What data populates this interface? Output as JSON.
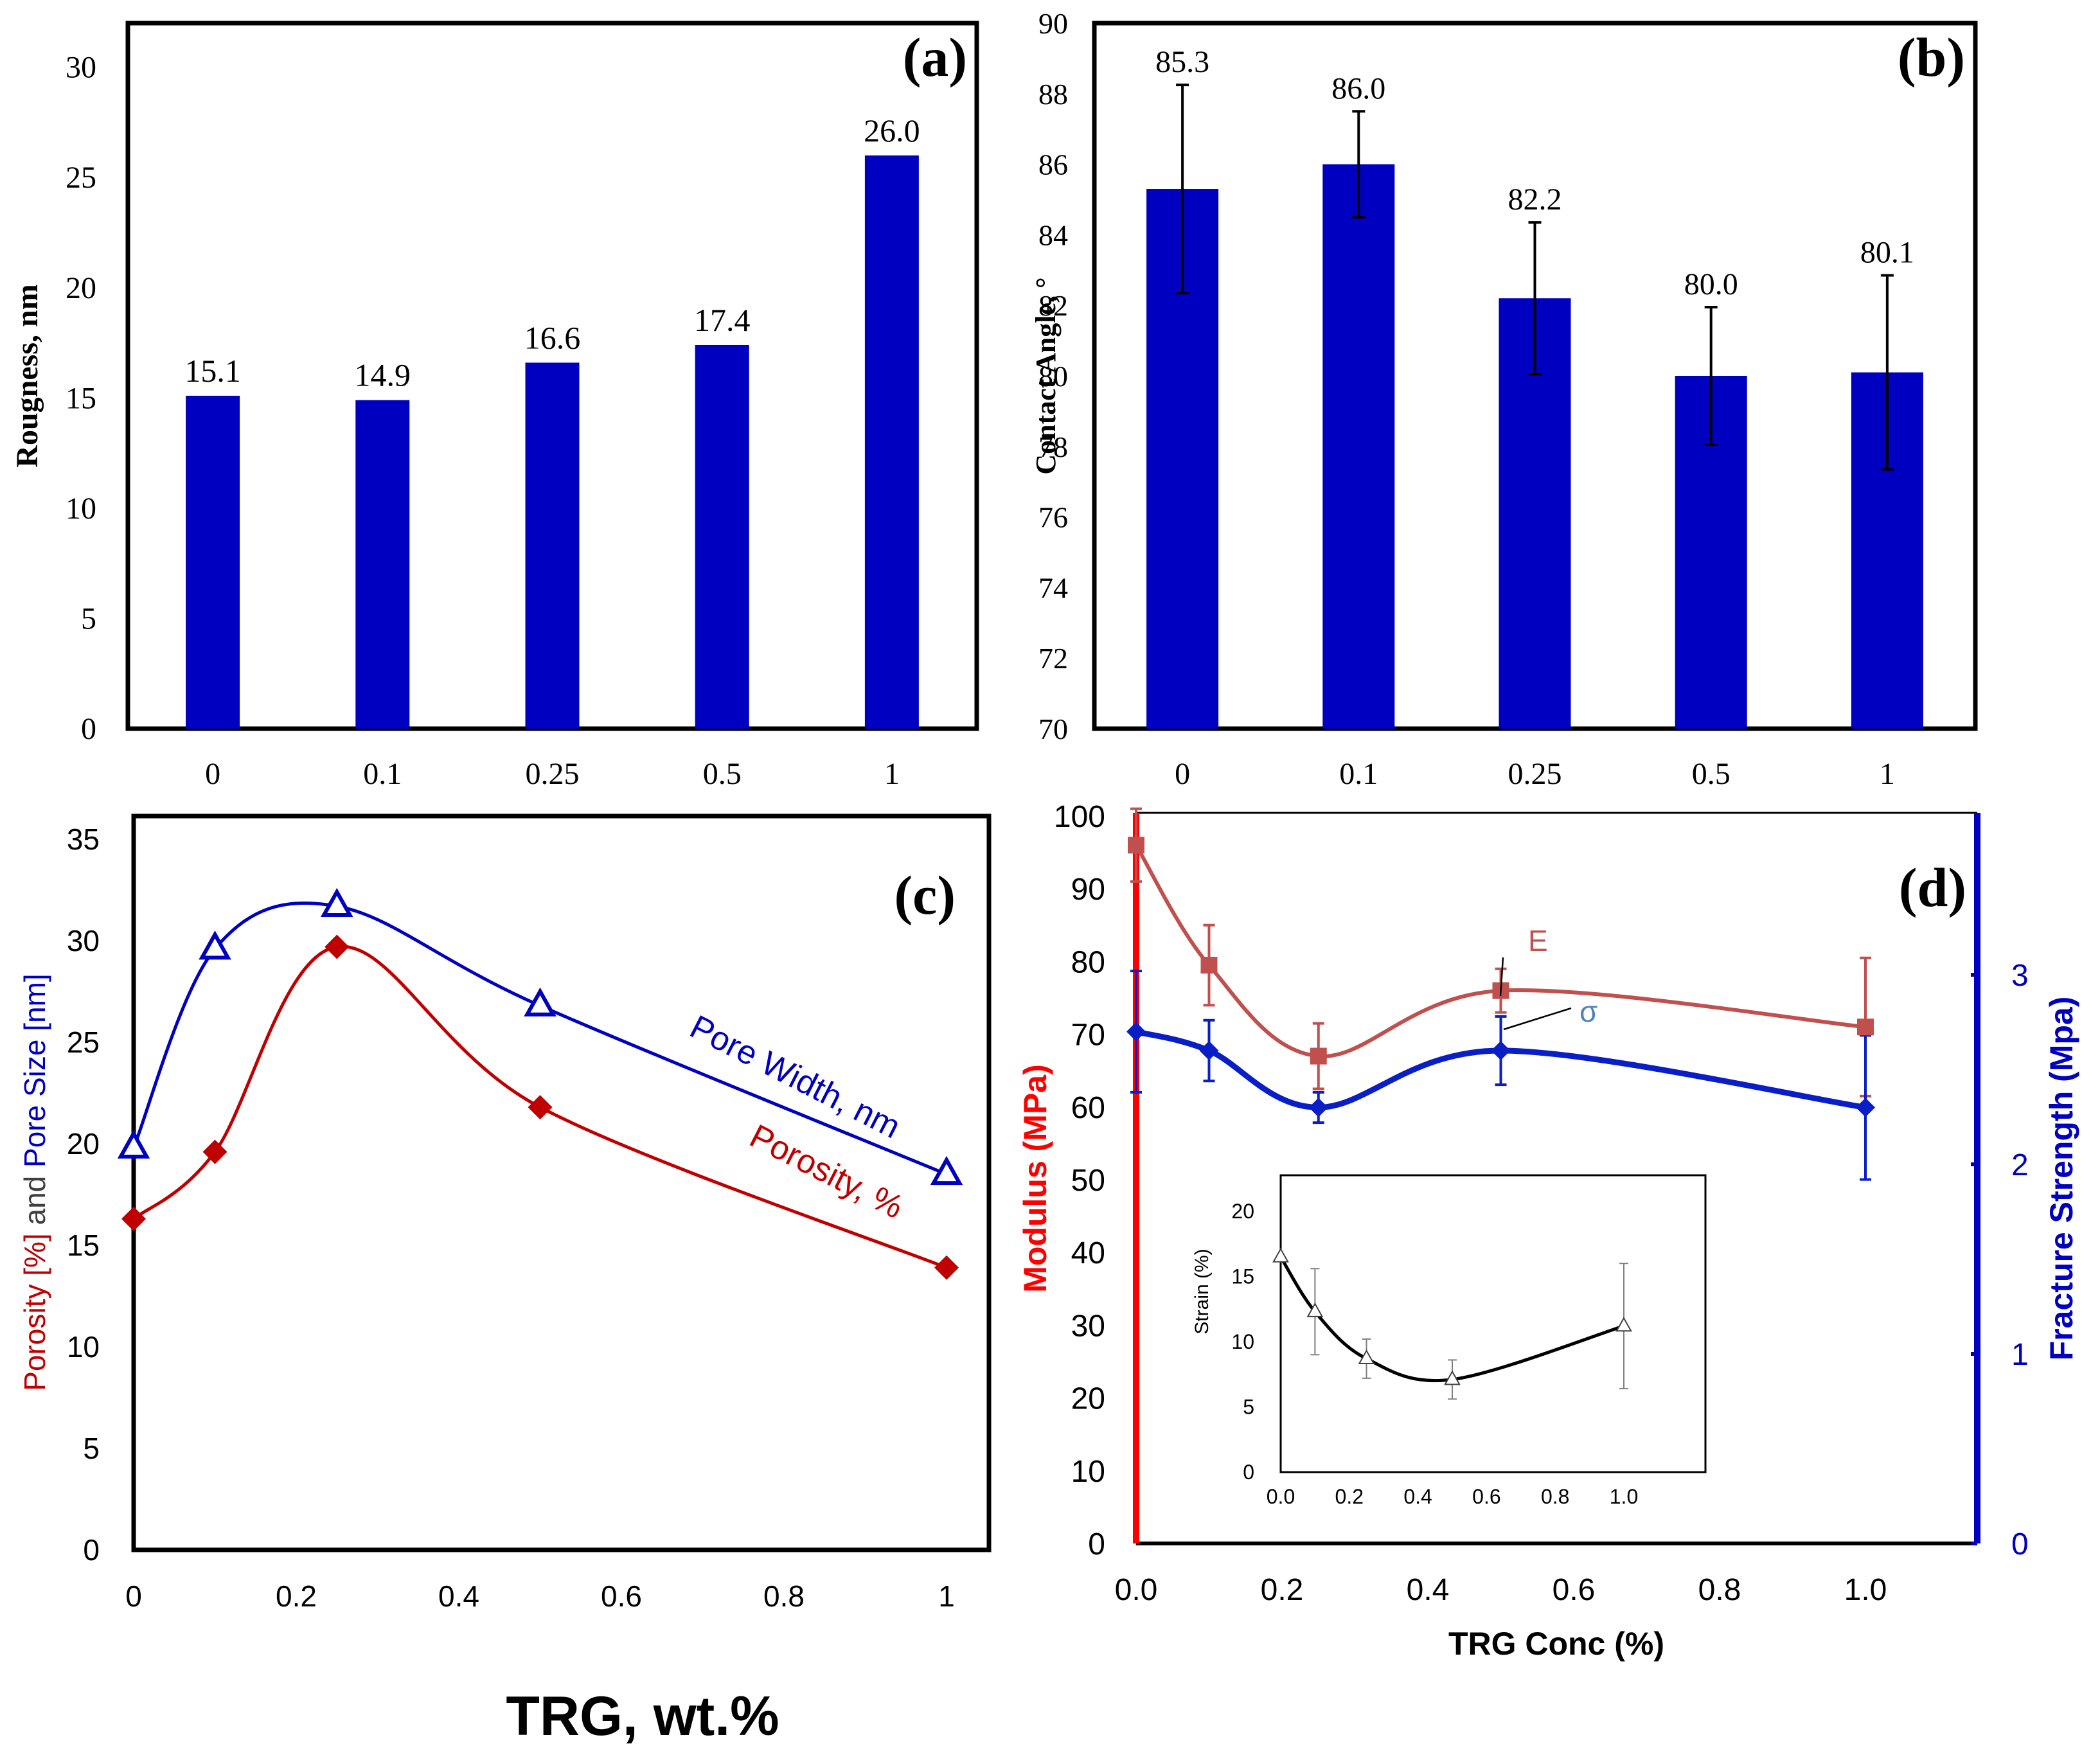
{
  "figure": {
    "x_label": "TRG, wt.%"
  },
  "colors": {
    "bar": "#0000C0",
    "red": "#C00000",
    "blue": "#0000C0",
    "modulus_line": "#C0504D",
    "modulus_axis": "#FF0000",
    "fracture_line": "#0A1EC8",
    "sigma_label": "#4F81BD",
    "inset_line": "#000000"
  },
  "chart_data": [
    {
      "panel": "(a)",
      "type": "bar",
      "categories": [
        "0",
        "0.1",
        "0.25",
        "0.5",
        "1"
      ],
      "values": [
        15.1,
        14.9,
        16.6,
        17.4,
        26.0
      ],
      "data_labels": [
        "15.1",
        "14.9",
        "16.6",
        "17.4",
        "26.0"
      ],
      "ylabel": "Rougness, nm",
      "ylim": [
        0,
        32
      ],
      "yticks": [
        "0",
        "5",
        "10",
        "15",
        "20",
        "25",
        "30"
      ]
    },
    {
      "panel": "(b)",
      "type": "bar",
      "categories": [
        "0",
        "0.1",
        "0.25",
        "0.5",
        "1"
      ],
      "values": [
        85.3,
        86.0,
        82.2,
        80.0,
        80.1
      ],
      "errors": [
        2.95,
        1.5,
        2.15,
        1.95,
        2.75
      ],
      "data_labels": [
        "85.3",
        "86.0",
        "82.2",
        "80.0",
        "80.1"
      ],
      "ylabel": "Contact Angle, °",
      "ylim": [
        70,
        90
      ],
      "yticks": [
        "70",
        "72",
        "74",
        "76",
        "78",
        "80",
        "82",
        "84",
        "86",
        "88",
        "90"
      ]
    },
    {
      "panel": "(c)",
      "type": "line",
      "x": [
        0,
        0.1,
        0.25,
        0.5,
        1
      ],
      "series": [
        {
          "name": "Pore Width, nm",
          "values": [
            19.8,
            29.6,
            31.7,
            26.8,
            18.5
          ]
        },
        {
          "name": "Porosity, %",
          "values": [
            16.3,
            19.6,
            29.7,
            21.8,
            13.9
          ]
        }
      ],
      "ylabel_parts": [
        "Porosity [%]",
        " and ",
        "Pore Size [nm]"
      ],
      "xlim": [
        0,
        1.05
      ],
      "ylim": [
        0,
        35
      ],
      "xticks": [
        "0",
        "0.2",
        "0.4",
        "0.6",
        "0.8",
        "1"
      ],
      "yticks": [
        "0",
        "5",
        "10",
        "15",
        "20",
        "25",
        "30",
        "35"
      ]
    },
    {
      "panel": "(d)",
      "type": "line",
      "x": [
        0,
        0.1,
        0.25,
        0.5,
        1.0
      ],
      "series": [
        {
          "name": "E",
          "axis": "left",
          "values": [
            96,
            79.5,
            67,
            76,
            71
          ],
          "errors": [
            5,
            5.5,
            4.5,
            3,
            9.5
          ]
        },
        {
          "name": "σ",
          "axis": "right",
          "values": [
            2.7,
            2.6,
            2.3,
            2.6,
            2.3
          ],
          "errors": [
            0.32,
            0.16,
            0.08,
            0.18,
            0.38
          ]
        }
      ],
      "ylabel_left": "Modulus (MPa)",
      "ylabel_right": "Fracture Strength (Mpa)",
      "xlabel": "TRG Conc (%)",
      "xlim": [
        0,
        1.15
      ],
      "ylim_left": [
        0,
        100
      ],
      "ylim_right": [
        0,
        3.7
      ],
      "xticks": [
        "0.0",
        "0.2",
        "0.4",
        "0.6",
        "0.8",
        "1.0"
      ],
      "yticks_left": [
        "0",
        "10",
        "20",
        "30",
        "40",
        "50",
        "60",
        "70",
        "80",
        "90",
        "100"
      ],
      "yticks_right": [
        "0",
        "1",
        "2",
        "3"
      ],
      "inset": {
        "type": "line",
        "x": [
          0,
          0.1,
          0.25,
          0.5,
          1.0
        ],
        "values": [
          16.5,
          12.3,
          8.7,
          7.1,
          11.2
        ],
        "errors": [
          0,
          3.3,
          1.5,
          1.5,
          4.8
        ],
        "ylabel": "Strain (%)",
        "xlim": [
          0,
          1.2
        ],
        "ylim": [
          0,
          20
        ],
        "xticks": [
          "0.0",
          "0.2",
          "0.4",
          "0.6",
          "0.8",
          "1.0"
        ],
        "yticks": [
          "0",
          "5",
          "10",
          "15",
          "20"
        ]
      }
    }
  ]
}
